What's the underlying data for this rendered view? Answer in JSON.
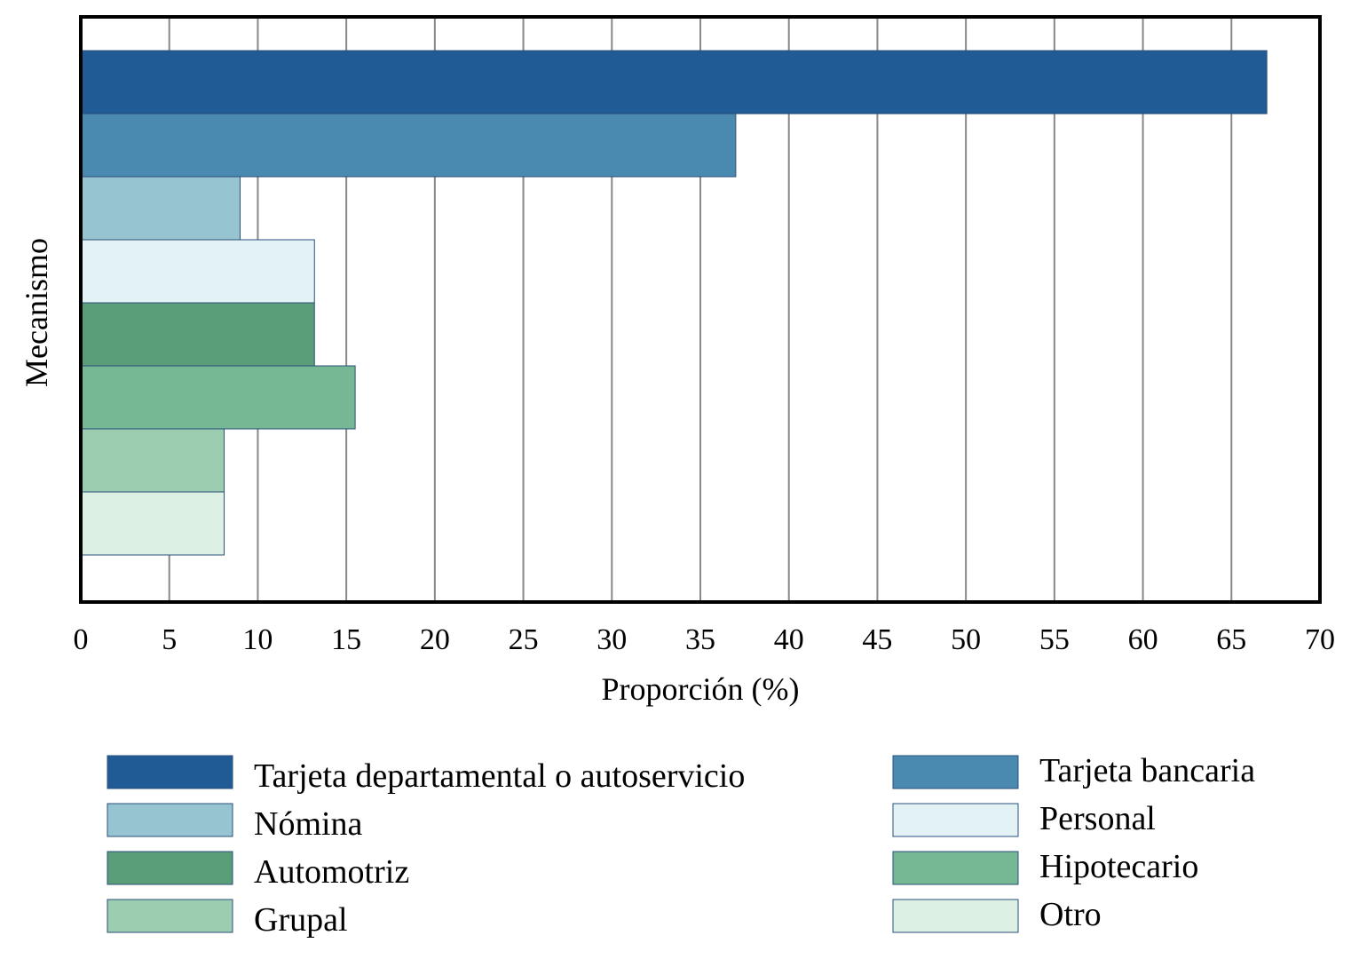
{
  "chart_data": {
    "type": "bar",
    "orientation": "horizontal",
    "xlabel": "Proporción (%)",
    "ylabel": "Mecanismo",
    "xlim": [
      0,
      70
    ],
    "xticks": [
      0,
      5,
      10,
      15,
      20,
      25,
      30,
      35,
      40,
      45,
      50,
      55,
      60,
      65,
      70
    ],
    "grid": "vertical",
    "legend_position": "bottom",
    "series": [
      {
        "name": "Tarjeta departamental o autoservicio",
        "value": 67,
        "color": "#215b96"
      },
      {
        "name": "Tarjeta bancaria",
        "value": 37,
        "color": "#4a89b0"
      },
      {
        "name": "Nómina",
        "value": 9,
        "color": "#97c4d1"
      },
      {
        "name": "Personal",
        "value": 13.2,
        "color": "#e3f2f4"
      },
      {
        "name": "Automotriz",
        "value": 13.2,
        "color": "#599e79"
      },
      {
        "name": "Hipotecario",
        "value": 15.5,
        "color": "#76b794"
      },
      {
        "name": "Grupal",
        "value": 8.1,
        "color": "#9dcdb1"
      },
      {
        "name": "Otro",
        "value": 8.1,
        "color": "#dcf0e4"
      }
    ]
  }
}
